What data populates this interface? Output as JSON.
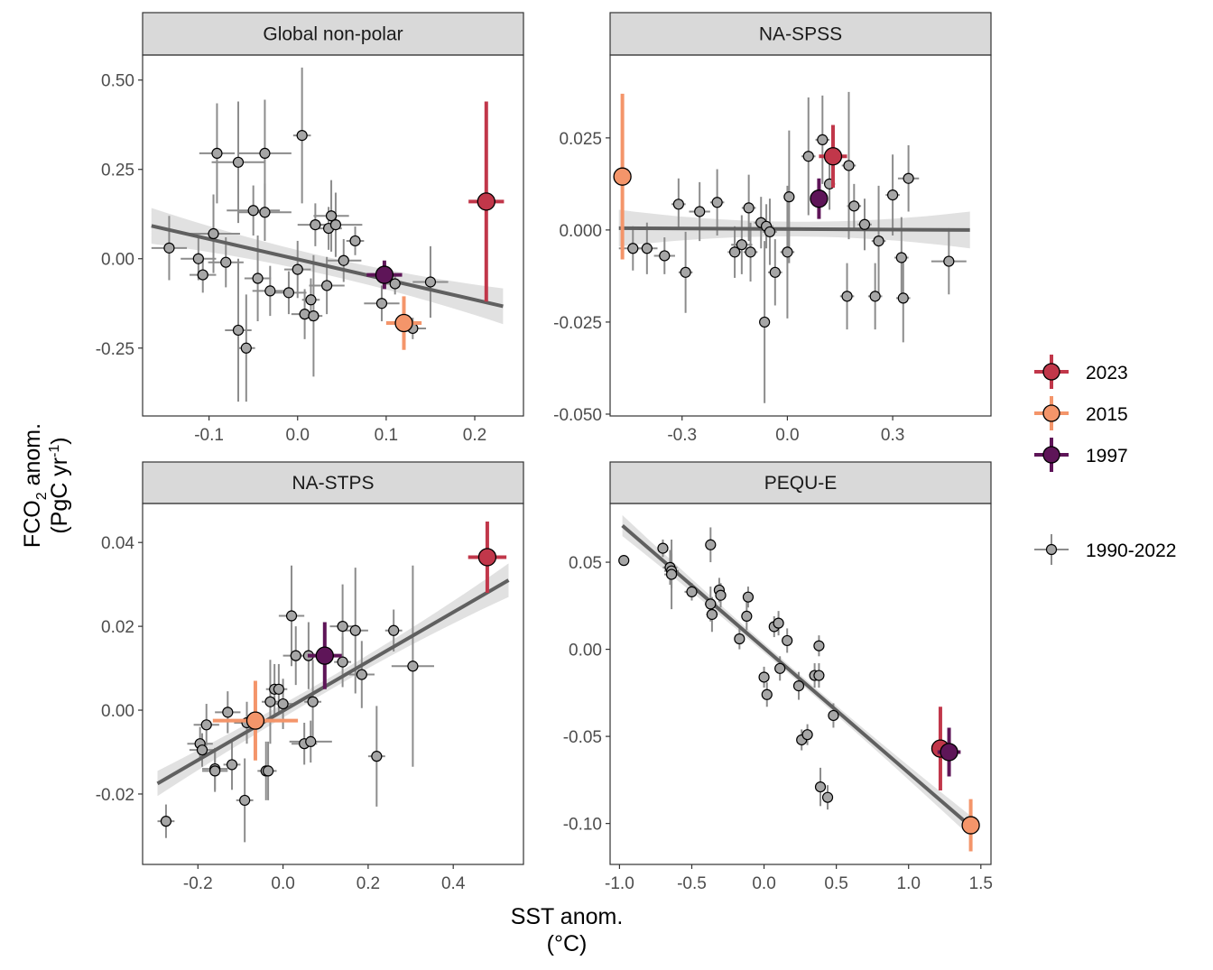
{
  "colors": {
    "y2023": "#c1374a",
    "y2015": "#f4956a",
    "y1997": "#5e1558",
    "history": "#a6a6a6",
    "history_bar": "#8c8c8c",
    "fit_line": "#606060",
    "ribbon": "#dcdcdc",
    "strip": "#d9d9d9"
  },
  "axes": {
    "x_title_line1": "SST anom.",
    "x_title_line2": "(°C)",
    "y_title_line1": "FCO",
    "y_title_sub": "2",
    "y_title_rest": " anom.",
    "y_title_line2": "(PgC yr",
    "y_title_sup": "-1",
    "y_title_close": ")"
  },
  "legend": {
    "items": [
      {
        "label": "2023",
        "color": "#c1374a",
        "kind": "event"
      },
      {
        "label": "2015",
        "color": "#f4956a",
        "kind": "event"
      },
      {
        "label": "1997",
        "color": "#5e1558",
        "kind": "event"
      },
      {
        "label": "1990-2022",
        "color": "#a6a6a6",
        "kind": "history"
      }
    ]
  },
  "chart_data": [
    {
      "type": "scatter",
      "title": "Global non-polar",
      "xlim": [
        -0.175,
        0.255
      ],
      "ylim": [
        -0.44,
        0.57
      ],
      "xticks": [
        -0.1,
        0.0,
        0.1,
        0.2
      ],
      "xtick_labels": [
        "-0.1",
        "0.0",
        "0.1",
        "0.2"
      ],
      "yticks": [
        -0.25,
        0.0,
        0.25,
        0.5
      ],
      "ytick_labels": [
        "-0.25",
        "0.00",
        "0.25",
        "0.50"
      ],
      "fit": {
        "x": [
          -0.165,
          0.232
        ],
        "y": [
          0.092,
          -0.133
        ],
        "band_left": 0.05,
        "band_center": 0.025,
        "band_right": 0.05
      },
      "history": [
        {
          "x": -0.145,
          "y": 0.03,
          "xerr": 0.02,
          "yerr": 0.09
        },
        {
          "x": -0.112,
          "y": 0.0,
          "xerr": 0.02,
          "yerr": 0.06
        },
        {
          "x": -0.107,
          "y": -0.045,
          "xerr": 0.015,
          "yerr": 0.05
        },
        {
          "x": -0.095,
          "y": 0.07,
          "xerr": 0.03,
          "yerr": 0.11
        },
        {
          "x": -0.091,
          "y": 0.295,
          "xerr": 0.02,
          "yerr": 0.14
        },
        {
          "x": -0.081,
          "y": -0.01,
          "xerr": 0.02,
          "yerr": 0.07
        },
        {
          "x": -0.067,
          "y": 0.27,
          "xerr": 0.03,
          "yerr": 0.17
        },
        {
          "x": -0.067,
          "y": -0.2,
          "xerr": 0.015,
          "yerr": 0.2
        },
        {
          "x": -0.058,
          "y": -0.25,
          "xerr": 0.01,
          "yerr": 0.15
        },
        {
          "x": -0.05,
          "y": 0.135,
          "xerr": 0.03,
          "yerr": 0.07
        },
        {
          "x": -0.045,
          "y": -0.055,
          "xerr": 0.015,
          "yerr": 0.12
        },
        {
          "x": -0.037,
          "y": 0.295,
          "xerr": 0.03,
          "yerr": 0.15
        },
        {
          "x": -0.037,
          "y": 0.13,
          "xerr": 0.03,
          "yerr": 0.08
        },
        {
          "x": -0.031,
          "y": -0.09,
          "xerr": 0.02,
          "yerr": 0.07
        },
        {
          "x": -0.01,
          "y": -0.095,
          "xerr": 0.02,
          "yerr": 0.06
        },
        {
          "x": 0.0,
          "y": -0.03,
          "xerr": 0.015,
          "yerr": 0.08
        },
        {
          "x": 0.005,
          "y": 0.345,
          "xerr": 0.01,
          "yerr": 0.19
        },
        {
          "x": 0.008,
          "y": -0.155,
          "xerr": 0.015,
          "yerr": 0.07
        },
        {
          "x": 0.015,
          "y": -0.115,
          "xerr": 0.01,
          "yerr": 0.06
        },
        {
          "x": 0.018,
          "y": -0.16,
          "xerr": 0.01,
          "yerr": 0.17
        },
        {
          "x": 0.02,
          "y": 0.095,
          "xerr": 0.02,
          "yerr": 0.06
        },
        {
          "x": 0.033,
          "y": -0.075,
          "xerr": 0.02,
          "yerr": 0.08
        },
        {
          "x": 0.035,
          "y": 0.085,
          "xerr": 0.015,
          "yerr": 0.06
        },
        {
          "x": 0.038,
          "y": 0.12,
          "xerr": 0.02,
          "yerr": 0.1
        },
        {
          "x": 0.043,
          "y": 0.095,
          "xerr": 0.03,
          "yerr": 0.09
        },
        {
          "x": 0.052,
          "y": -0.005,
          "xerr": 0.02,
          "yerr": 0.06
        },
        {
          "x": 0.065,
          "y": 0.05,
          "xerr": 0.01,
          "yerr": 0.04
        },
        {
          "x": 0.095,
          "y": -0.125,
          "xerr": 0.02,
          "yerr": 0.05
        },
        {
          "x": 0.11,
          "y": -0.07,
          "xerr": 0.01,
          "yerr": 0.03
        },
        {
          "x": 0.13,
          "y": -0.195,
          "xerr": 0.015,
          "yerr": 0.03
        },
        {
          "x": 0.15,
          "y": -0.065,
          "xerr": 0.02,
          "yerr": 0.1
        }
      ],
      "events": [
        {
          "label": "2023",
          "x": 0.213,
          "y": 0.16,
          "xerr": 0.02,
          "yerr": 0.28
        },
        {
          "label": "2015",
          "x": 0.12,
          "y": -0.18,
          "xerr": 0.02,
          "yerr": 0.075
        },
        {
          "label": "1997",
          "x": 0.098,
          "y": -0.045,
          "xerr": 0.02,
          "yerr": 0.04
        }
      ]
    },
    {
      "type": "scatter",
      "title": "NA-SPSS",
      "xlim": [
        -0.505,
        0.58
      ],
      "ylim": [
        -0.0505,
        0.0475
      ],
      "xticks": [
        -0.3,
        0.0,
        0.3
      ],
      "xtick_labels": [
        "-0.3",
        "0.0",
        "0.3"
      ],
      "yticks": [
        -0.05,
        -0.025,
        0.0,
        0.025
      ],
      "ytick_labels": [
        "-0.050",
        "-0.025",
        "0.000",
        "0.025"
      ],
      "fit": {
        "x": [
          -0.48,
          0.52
        ],
        "y": [
          0.0005,
          0.0
        ],
        "band_left": 0.005,
        "band_center": 0.002,
        "band_right": 0.005
      },
      "history": [
        {
          "x": -0.44,
          "y": -0.005,
          "xerr": 0.04,
          "yerr": 0.006
        },
        {
          "x": -0.4,
          "y": -0.005,
          "xerr": 0.03,
          "yerr": 0.007
        },
        {
          "x": -0.35,
          "y": -0.007,
          "xerr": 0.03,
          "yerr": 0.005
        },
        {
          "x": -0.31,
          "y": 0.007,
          "xerr": 0.02,
          "yerr": 0.007
        },
        {
          "x": -0.29,
          "y": -0.0115,
          "xerr": 0.02,
          "yerr": 0.011
        },
        {
          "x": -0.25,
          "y": 0.005,
          "xerr": 0.03,
          "yerr": 0.008
        },
        {
          "x": -0.2,
          "y": 0.0075,
          "xerr": 0.02,
          "yerr": 0.009
        },
        {
          "x": -0.15,
          "y": -0.006,
          "xerr": 0.02,
          "yerr": 0.007
        },
        {
          "x": -0.13,
          "y": -0.004,
          "xerr": 0.03,
          "yerr": 0.008
        },
        {
          "x": -0.11,
          "y": 0.006,
          "xerr": 0.02,
          "yerr": 0.009
        },
        {
          "x": -0.105,
          "y": -0.006,
          "xerr": 0.02,
          "yerr": 0.008
        },
        {
          "x": -0.075,
          "y": 0.002,
          "xerr": 0.02,
          "yerr": 0.007
        },
        {
          "x": -0.065,
          "y": -0.025,
          "xerr": 0.01,
          "yerr": 0.022
        },
        {
          "x": -0.06,
          "y": 0.001,
          "xerr": 0.02,
          "yerr": 0.006
        },
        {
          "x": -0.05,
          "y": -0.0005,
          "xerr": 0.02,
          "yerr": 0.009
        },
        {
          "x": -0.035,
          "y": -0.0115,
          "xerr": 0.02,
          "yerr": 0.009
        },
        {
          "x": 0.0,
          "y": -0.006,
          "xerr": 0.02,
          "yerr": 0.018
        },
        {
          "x": 0.005,
          "y": 0.009,
          "xerr": 0.01,
          "yerr": 0.018
        },
        {
          "x": 0.06,
          "y": 0.02,
          "xerr": 0.02,
          "yerr": 0.016
        },
        {
          "x": 0.1,
          "y": 0.0245,
          "xerr": 0.02,
          "yerr": 0.012
        },
        {
          "x": 0.12,
          "y": 0.0125,
          "xerr": 0.01,
          "yerr": 0.007
        },
        {
          "x": 0.17,
          "y": -0.018,
          "xerr": 0.02,
          "yerr": 0.009
        },
        {
          "x": 0.175,
          "y": 0.0175,
          "xerr": 0.02,
          "yerr": 0.02
        },
        {
          "x": 0.19,
          "y": 0.0065,
          "xerr": 0.02,
          "yerr": 0.006
        },
        {
          "x": 0.22,
          "y": 0.0015,
          "xerr": 0.02,
          "yerr": 0.007
        },
        {
          "x": 0.25,
          "y": -0.018,
          "xerr": 0.02,
          "yerr": 0.009
        },
        {
          "x": 0.26,
          "y": -0.003,
          "xerr": 0.02,
          "yerr": 0.015
        },
        {
          "x": 0.3,
          "y": 0.0095,
          "xerr": 0.02,
          "yerr": 0.011
        },
        {
          "x": 0.325,
          "y": -0.0075,
          "xerr": 0.02,
          "yerr": 0.011
        },
        {
          "x": 0.33,
          "y": -0.0185,
          "xerr": 0.02,
          "yerr": 0.012
        },
        {
          "x": 0.345,
          "y": 0.014,
          "xerr": 0.03,
          "yerr": 0.009
        },
        {
          "x": 0.46,
          "y": -0.0085,
          "xerr": 0.05,
          "yerr": 0.009
        }
      ],
      "events": [
        {
          "label": "2023",
          "x": 0.13,
          "y": 0.02,
          "xerr": 0.04,
          "yerr": 0.0085
        },
        {
          "label": "2015",
          "x": -0.47,
          "y": 0.0145,
          "xerr": 0.0,
          "yerr": 0.0225
        },
        {
          "label": "1997",
          "x": 0.09,
          "y": 0.0085,
          "xerr": 0.01,
          "yerr": 0.0055
        }
      ]
    },
    {
      "type": "scatter",
      "title": "NA-STPS",
      "xlim": [
        -0.33,
        0.565
      ],
      "ylim": [
        -0.0368,
        0.0493
      ],
      "xticks": [
        -0.2,
        0.0,
        0.2,
        0.4
      ],
      "xtick_labels": [
        "-0.2",
        "0.0",
        "0.2",
        "0.4"
      ],
      "yticks": [
        -0.02,
        0.0,
        0.02,
        0.04
      ],
      "ytick_labels": [
        "-0.02",
        "0.00",
        "0.02",
        "0.04"
      ],
      "fit": {
        "x": [
          -0.295,
          0.53
        ],
        "y": [
          -0.0175,
          0.031
        ],
        "band_left": 0.003,
        "band_center": 0.0015,
        "band_right": 0.004
      },
      "history": [
        {
          "x": -0.275,
          "y": -0.0265,
          "xerr": 0.02,
          "yerr": 0.004
        },
        {
          "x": -0.195,
          "y": -0.008,
          "xerr": 0.03,
          "yerr": 0.004
        },
        {
          "x": -0.19,
          "y": -0.0095,
          "xerr": 0.03,
          "yerr": 0.004
        },
        {
          "x": -0.18,
          "y": -0.0035,
          "xerr": 0.03,
          "yerr": 0.005
        },
        {
          "x": -0.16,
          "y": -0.014,
          "xerr": 0.03,
          "yerr": 0.005
        },
        {
          "x": -0.16,
          "y": -0.0145,
          "xerr": 0.03,
          "yerr": 0.005
        },
        {
          "x": -0.13,
          "y": -0.0005,
          "xerr": 0.03,
          "yerr": 0.005
        },
        {
          "x": -0.12,
          "y": -0.013,
          "xerr": 0.02,
          "yerr": 0.006
        },
        {
          "x": -0.09,
          "y": -0.0215,
          "xerr": 0.02,
          "yerr": 0.01
        },
        {
          "x": -0.085,
          "y": -0.003,
          "xerr": 0.03,
          "yerr": 0.005
        },
        {
          "x": -0.04,
          "y": -0.0145,
          "xerr": 0.02,
          "yerr": 0.007
        },
        {
          "x": -0.035,
          "y": -0.0145,
          "xerr": 0.02,
          "yerr": 0.007
        },
        {
          "x": -0.03,
          "y": 0.002,
          "xerr": 0.02,
          "yerr": 0.01
        },
        {
          "x": -0.02,
          "y": 0.005,
          "xerr": 0.02,
          "yerr": 0.006
        },
        {
          "x": -0.01,
          "y": 0.005,
          "xerr": 0.02,
          "yerr": 0.006
        },
        {
          "x": 0.0,
          "y": 0.0015,
          "xerr": 0.03,
          "yerr": 0.006
        },
        {
          "x": 0.02,
          "y": 0.0225,
          "xerr": 0.03,
          "yerr": 0.012
        },
        {
          "x": 0.03,
          "y": 0.013,
          "xerr": 0.03,
          "yerr": 0.007
        },
        {
          "x": 0.05,
          "y": -0.008,
          "xerr": 0.03,
          "yerr": 0.005
        },
        {
          "x": 0.06,
          "y": 0.013,
          "xerr": 0.03,
          "yerr": 0.008
        },
        {
          "x": 0.065,
          "y": -0.0075,
          "xerr": 0.05,
          "yerr": 0.005
        },
        {
          "x": 0.07,
          "y": 0.002,
          "xerr": 0.02,
          "yerr": 0.01
        },
        {
          "x": 0.14,
          "y": 0.02,
          "xerr": 0.03,
          "yerr": 0.01
        },
        {
          "x": 0.14,
          "y": 0.0115,
          "xerr": 0.02,
          "yerr": 0.006
        },
        {
          "x": 0.17,
          "y": 0.019,
          "xerr": 0.03,
          "yerr": 0.015
        },
        {
          "x": 0.185,
          "y": 0.0085,
          "xerr": 0.03,
          "yerr": 0.008
        },
        {
          "x": 0.22,
          "y": -0.011,
          "xerr": 0.02,
          "yerr": 0.012
        },
        {
          "x": 0.26,
          "y": 0.019,
          "xerr": 0.02,
          "yerr": 0.005
        },
        {
          "x": 0.305,
          "y": 0.0105,
          "xerr": 0.05,
          "yerr": 0.024
        }
      ],
      "events": [
        {
          "label": "2023",
          "x": 0.48,
          "y": 0.0365,
          "xerr": 0.045,
          "yerr": 0.0085
        },
        {
          "label": "2015",
          "x": -0.065,
          "y": -0.0025,
          "xerr": 0.1,
          "yerr": 0.0095
        },
        {
          "label": "1997",
          "x": 0.098,
          "y": 0.013,
          "xerr": 0.04,
          "yerr": 0.008
        }
      ]
    },
    {
      "type": "scatter",
      "title": "PEQU-E",
      "xlim": [
        -1.065,
        1.57
      ],
      "ylim": [
        -0.1235,
        0.0837
      ],
      "xticks": [
        -1.0,
        -0.5,
        0.0,
        0.5,
        1.0,
        1.5
      ],
      "xtick_labels": [
        "-1.0",
        "-0.5",
        "0.0",
        "0.5",
        "1.0",
        "1.5"
      ],
      "yticks": [
        -0.1,
        -0.05,
        0.0,
        0.05
      ],
      "ytick_labels": [
        "-0.10",
        "-0.05",
        "0.00",
        "0.05"
      ],
      "fit": {
        "x": [
          -0.98,
          1.42
        ],
        "y": [
          0.071,
          -0.101
        ],
        "band_left": 0.006,
        "band_center": 0.0025,
        "band_right": 0.006
      },
      "history": [
        {
          "x": -0.97,
          "y": 0.051,
          "xerr": 0.02,
          "yerr": 0.0
        },
        {
          "x": -0.7,
          "y": 0.058,
          "xerr": 0.03,
          "yerr": 0.005
        },
        {
          "x": -0.65,
          "y": 0.047,
          "xerr": 0.05,
          "yerr": 0.01
        },
        {
          "x": -0.64,
          "y": 0.045,
          "xerr": 0.05,
          "yerr": 0.01
        },
        {
          "x": -0.64,
          "y": 0.043,
          "xerr": 0.05,
          "yerr": 0.02
        },
        {
          "x": -0.5,
          "y": 0.033,
          "xerr": 0.05,
          "yerr": 0.005
        },
        {
          "x": -0.37,
          "y": 0.06,
          "xerr": 0.02,
          "yerr": 0.01
        },
        {
          "x": -0.37,
          "y": 0.026,
          "xerr": 0.04,
          "yerr": 0.01
        },
        {
          "x": -0.36,
          "y": 0.02,
          "xerr": 0.04,
          "yerr": 0.01
        },
        {
          "x": -0.31,
          "y": 0.034,
          "xerr": 0.03,
          "yerr": 0.007
        },
        {
          "x": -0.3,
          "y": 0.031,
          "xerr": 0.03,
          "yerr": 0.007
        },
        {
          "x": -0.17,
          "y": 0.006,
          "xerr": 0.03,
          "yerr": 0.006
        },
        {
          "x": -0.12,
          "y": 0.019,
          "xerr": 0.03,
          "yerr": 0.008
        },
        {
          "x": -0.11,
          "y": 0.03,
          "xerr": 0.03,
          "yerr": 0.006
        },
        {
          "x": 0.0,
          "y": -0.016,
          "xerr": 0.02,
          "yerr": 0.006
        },
        {
          "x": 0.02,
          "y": -0.026,
          "xerr": 0.02,
          "yerr": 0.007
        },
        {
          "x": 0.07,
          "y": 0.013,
          "xerr": 0.03,
          "yerr": 0.006
        },
        {
          "x": 0.1,
          "y": 0.015,
          "xerr": 0.02,
          "yerr": 0.007
        },
        {
          "x": 0.11,
          "y": -0.011,
          "xerr": 0.03,
          "yerr": 0.007
        },
        {
          "x": 0.16,
          "y": 0.005,
          "xerr": 0.02,
          "yerr": 0.007
        },
        {
          "x": 0.24,
          "y": -0.021,
          "xerr": 0.03,
          "yerr": 0.008
        },
        {
          "x": 0.26,
          "y": -0.052,
          "xerr": 0.03,
          "yerr": 0.006
        },
        {
          "x": 0.3,
          "y": -0.049,
          "xerr": 0.03,
          "yerr": 0.006
        },
        {
          "x": 0.35,
          "y": -0.015,
          "xerr": 0.03,
          "yerr": 0.007
        },
        {
          "x": 0.38,
          "y": -0.015,
          "xerr": 0.03,
          "yerr": 0.007
        },
        {
          "x": 0.38,
          "y": 0.002,
          "xerr": 0.03,
          "yerr": 0.006
        },
        {
          "x": 0.39,
          "y": -0.079,
          "xerr": 0.03,
          "yerr": 0.011
        },
        {
          "x": 0.44,
          "y": -0.085,
          "xerr": 0.03,
          "yerr": 0.007
        },
        {
          "x": 0.48,
          "y": -0.038,
          "xerr": 0.02,
          "yerr": 0.007
        }
      ],
      "events": [
        {
          "label": "2023",
          "x": 1.22,
          "y": -0.057,
          "xerr": 0.03,
          "yerr": 0.024
        },
        {
          "label": "2015",
          "x": 1.43,
          "y": -0.101,
          "xerr": 0.0,
          "yerr": 0.015
        },
        {
          "label": "1997",
          "x": 1.28,
          "y": -0.059,
          "xerr": 0.08,
          "yerr": 0.014
        }
      ]
    }
  ]
}
